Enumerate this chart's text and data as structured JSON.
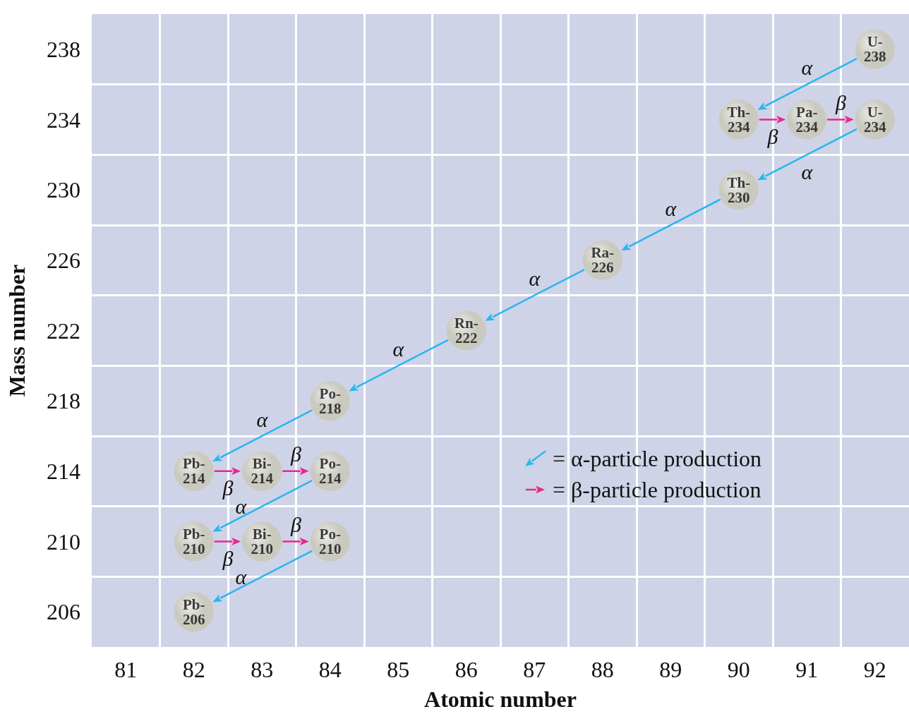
{
  "chart_data": {
    "type": "scatter",
    "xlabel": "Atomic number",
    "ylabel": "Mass number",
    "xlim": [
      80.5,
      92.5
    ],
    "ylim": [
      204,
      240
    ],
    "xticks": [
      81,
      82,
      83,
      84,
      85,
      86,
      87,
      88,
      89,
      90,
      91,
      92,
      {
        "value": 81.5,
        "label": null
      },
      {
        "value": 82.5,
        "label": null
      },
      {
        "value": 83.5,
        "label": null
      },
      {
        "value": 84.5,
        "label": null
      },
      {
        "value": 85.5,
        "label": null
      },
      {
        "value": 86.5,
        "label": null
      },
      {
        "value": 87.5,
        "label": null
      },
      {
        "value": 88.5,
        "label": null
      },
      {
        "value": 89.5,
        "label": null
      },
      {
        "value": 90.5,
        "label": null
      },
      {
        "value": 91.5,
        "label": null
      }
    ],
    "yticks": [
      206,
      210,
      214,
      218,
      222,
      226,
      230,
      234,
      238,
      {
        "value": 208,
        "label": null
      },
      {
        "value": 212,
        "label": null
      },
      {
        "value": 216,
        "label": null
      },
      {
        "value": 220,
        "label": null
      },
      {
        "value": 224,
        "label": null
      },
      {
        "value": 228,
        "label": null
      },
      {
        "value": 232,
        "label": null
      },
      {
        "value": 236,
        "label": null
      }
    ],
    "grid": true,
    "series": [
      {
        "color": "#c9c7b5",
        "x": [
          92,
          90,
          91,
          92,
          90,
          88,
          86,
          84,
          82,
          83,
          84,
          82,
          83,
          84,
          82
        ],
        "values": [
          238,
          234,
          234,
          234,
          230,
          226,
          222,
          218,
          214,
          214,
          214,
          210,
          210,
          210,
          206
        ],
        "value_labels": [
          "U-238",
          "Th-234",
          "Pa-234",
          "U-234",
          "Th-230",
          "Ra-226",
          "Rn-222",
          "Po-218",
          "Pb-214",
          "Bi-214",
          "Po-214",
          "Pb-210",
          "Bi-210",
          "Po-210",
          "Pb-206"
        ]
      }
    ],
    "annotations": [
      "α",
      {
        "text": "α",
        "x": 90,
        "y": 230
      },
      "α",
      "α",
      "α",
      "α",
      {
        "text": "α",
        "x": 82,
        "y": 210
      },
      {
        "text": "α",
        "x": 82,
        "y": 206
      },
      {
        "text": "β",
        "x": 91,
        "y": 234
      },
      {
        "text": "β",
        "x": 92,
        "y": 234
      },
      {
        "text": "β",
        "x": 83,
        "y": 214
      },
      {
        "text": "β",
        "x": 84,
        "y": 214
      },
      {
        "text": "β",
        "x": 83,
        "y": 210
      },
      {
        "text": "β",
        "x": 84,
        "y": 210
      },
      "= α-particle production",
      "= β-particle production"
    ]
  }
}
